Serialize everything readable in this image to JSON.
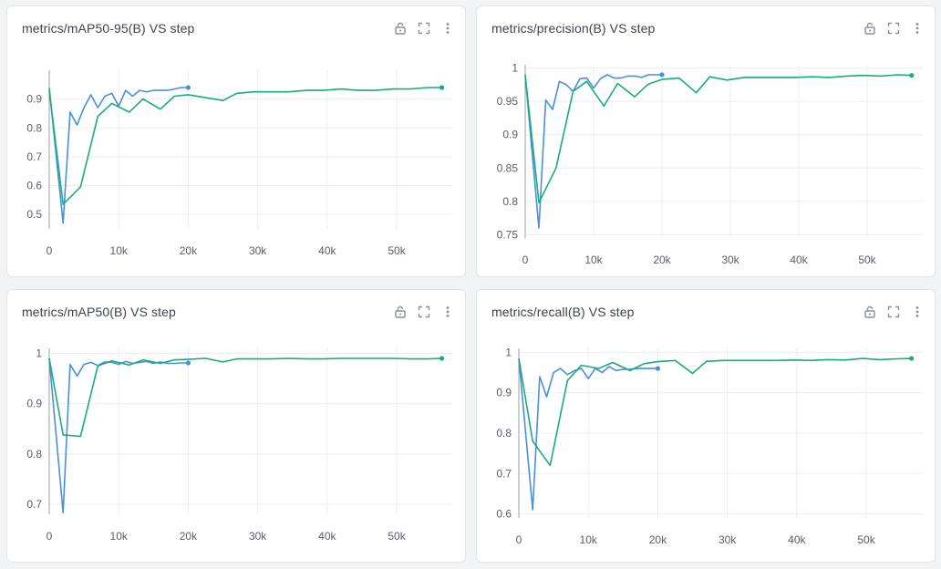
{
  "colors": {
    "series_blue": "#4a90d9",
    "series_green": "#1aac7a",
    "grid": "#eceef1",
    "axis": "#9aa0a8"
  },
  "icons": [
    "lock-open-icon",
    "fullscreen-icon",
    "more-vertical-icon"
  ],
  "panels": [
    {
      "title": "metrics/mAP50-95(B) VS step",
      "chart_data": {
        "type": "line",
        "title": "metrics/mAP50-95(B) VS step",
        "xlabel": "",
        "ylabel": "",
        "xlim": [
          0,
          58000
        ],
        "ylim": [
          0.45,
          1.0
        ],
        "x_ticks": [
          "0",
          "10k",
          "20k",
          "30k",
          "40k",
          "50k"
        ],
        "x_tick_values": [
          0,
          10000,
          20000,
          30000,
          40000,
          50000
        ],
        "y_ticks": [
          "0.5",
          "0.6",
          "0.7",
          "0.8",
          "0.9"
        ],
        "y_tick_values": [
          0.5,
          0.6,
          0.7,
          0.8,
          0.9
        ],
        "grid": true,
        "series": [
          {
            "color": "#4a90d9",
            "x": [
              0,
              2000,
              3000,
              4000,
              5000,
              6000,
              7000,
              8000,
              9000,
              10000,
              11000,
              12000,
              13000,
              14000,
              15000,
              16000,
              17000,
              18000,
              19000,
              20000
            ],
            "y": [
              0.94,
              0.47,
              0.855,
              0.81,
              0.87,
              0.915,
              0.87,
              0.91,
              0.92,
              0.875,
              0.93,
              0.91,
              0.93,
              0.925,
              0.93,
              0.93,
              0.93,
              0.935,
              0.94,
              0.94
            ]
          },
          {
            "color": "#1aac7a",
            "x": [
              0,
              2000,
              4500,
              7000,
              9000,
              11500,
              13500,
              16000,
              18000,
              20000,
              22500,
              25000,
              27000,
              29500,
              32000,
              34500,
              37000,
              39500,
              42000,
              44500,
              47000,
              49500,
              52000,
              54500,
              56500
            ],
            "y": [
              0.93,
              0.535,
              0.595,
              0.84,
              0.885,
              0.855,
              0.9,
              0.865,
              0.91,
              0.915,
              0.905,
              0.895,
              0.92,
              0.925,
              0.925,
              0.925,
              0.93,
              0.93,
              0.935,
              0.93,
              0.93,
              0.935,
              0.935,
              0.94,
              0.94
            ]
          }
        ]
      }
    },
    {
      "title": "metrics/precision(B) VS step",
      "chart_data": {
        "type": "line",
        "title": "metrics/precision(B) VS step",
        "xlabel": "",
        "ylabel": "",
        "xlim": [
          0,
          58000
        ],
        "ylim": [
          0.745,
          1.005
        ],
        "x_ticks": [
          "0",
          "10k",
          "20k",
          "30k",
          "40k",
          "50k"
        ],
        "x_tick_values": [
          0,
          10000,
          20000,
          30000,
          40000,
          50000
        ],
        "y_ticks": [
          "0.75",
          "0.8",
          "0.85",
          "0.9",
          "0.95",
          "1"
        ],
        "y_tick_values": [
          0.75,
          0.8,
          0.85,
          0.9,
          0.95,
          1.0
        ],
        "grid": true,
        "series": [
          {
            "color": "#4a90d9",
            "x": [
              0,
              2000,
              3000,
              4000,
              5000,
              6000,
              7000,
              8000,
              9000,
              10000,
              11000,
              12000,
              13000,
              14000,
              15000,
              16000,
              17000,
              18000,
              19000,
              20000
            ],
            "y": [
              0.99,
              0.76,
              0.952,
              0.938,
              0.98,
              0.975,
              0.965,
              0.984,
              0.985,
              0.97,
              0.984,
              0.99,
              0.985,
              0.985,
              0.988,
              0.988,
              0.986,
              0.99,
              0.99,
              0.99
            ],
            "dot_last": true
          },
          {
            "color": "#1aac7a",
            "x": [
              0,
              2000,
              4500,
              7000,
              9000,
              11500,
              13500,
              16000,
              18000,
              20000,
              22500,
              25000,
              27000,
              29500,
              32000,
              34500,
              37000,
              39500,
              42000,
              44500,
              47000,
              49500,
              52000,
              54500,
              56500
            ],
            "y": [
              0.99,
              0.798,
              0.85,
              0.965,
              0.98,
              0.943,
              0.977,
              0.957,
              0.976,
              0.983,
              0.985,
              0.963,
              0.987,
              0.982,
              0.986,
              0.986,
              0.986,
              0.986,
              0.987,
              0.986,
              0.988,
              0.989,
              0.988,
              0.99,
              0.989
            ]
          }
        ]
      }
    },
    {
      "title": "metrics/mAP50(B) VS step",
      "chart_data": {
        "type": "line",
        "title": "metrics/mAP50(B) VS step",
        "xlabel": "",
        "ylabel": "",
        "xlim": [
          0,
          58000
        ],
        "ylim": [
          0.68,
          1.01
        ],
        "x_ticks": [
          "0",
          "10k",
          "20k",
          "30k",
          "40k",
          "50k"
        ],
        "x_tick_values": [
          0,
          10000,
          20000,
          30000,
          40000,
          50000
        ],
        "y_ticks": [
          "0.7",
          "0.8",
          "0.9",
          "1"
        ],
        "y_tick_values": [
          0.7,
          0.8,
          0.9,
          1.0
        ],
        "grid": true,
        "series": [
          {
            "color": "#4a90d9",
            "x": [
              0,
              2000,
              3000,
              4000,
              5000,
              6000,
              7000,
              8000,
              9000,
              10000,
              11000,
              12000,
              13000,
              14000,
              15000,
              16000,
              17000,
              18000,
              19000,
              20000
            ],
            "y": [
              0.99,
              0.683,
              0.978,
              0.955,
              0.978,
              0.982,
              0.976,
              0.983,
              0.982,
              0.978,
              0.984,
              0.98,
              0.982,
              0.984,
              0.98,
              0.983,
              0.98,
              0.98,
              0.981,
              0.981
            ]
          },
          {
            "color": "#1aac7a",
            "x": [
              0,
              2000,
              4500,
              7000,
              9000,
              11500,
              13500,
              16000,
              18000,
              20000,
              22500,
              25000,
              27000,
              29500,
              32000,
              34500,
              37000,
              39500,
              42000,
              44500,
              47000,
              49500,
              52000,
              54500,
              56500
            ],
            "y": [
              0.99,
              0.838,
              0.835,
              0.975,
              0.985,
              0.977,
              0.987,
              0.98,
              0.987,
              0.988,
              0.99,
              0.983,
              0.989,
              0.989,
              0.989,
              0.99,
              0.989,
              0.989,
              0.99,
              0.99,
              0.99,
              0.99,
              0.989,
              0.989,
              0.99
            ]
          }
        ]
      }
    },
    {
      "title": "metrics/recall(B) VS step",
      "chart_data": {
        "type": "line",
        "title": "metrics/recall(B) VS step",
        "xlabel": "",
        "ylabel": "",
        "xlim": [
          0,
          58000
        ],
        "ylim": [
          0.59,
          1.01
        ],
        "x_ticks": [
          "0",
          "10k",
          "20k",
          "30k",
          "40k",
          "50k"
        ],
        "x_tick_values": [
          0,
          10000,
          20000,
          30000,
          40000,
          50000
        ],
        "y_ticks": [
          "0.6",
          "0.7",
          "0.8",
          "0.9",
          "1"
        ],
        "y_tick_values": [
          0.6,
          0.7,
          0.8,
          0.9,
          1.0
        ],
        "grid": true,
        "series": [
          {
            "color": "#4a90d9",
            "x": [
              0,
              2000,
              3000,
              4000,
              5000,
              6000,
              7000,
              8000,
              9000,
              10000,
              11000,
              12000,
              13000,
              14000,
              15000,
              16000,
              17000,
              18000,
              19000,
              20000
            ],
            "y": [
              0.985,
              0.61,
              0.94,
              0.89,
              0.95,
              0.96,
              0.945,
              0.955,
              0.96,
              0.935,
              0.96,
              0.95,
              0.965,
              0.955,
              0.958,
              0.958,
              0.96,
              0.96,
              0.96,
              0.96
            ]
          },
          {
            "color": "#1aac7a",
            "x": [
              0,
              2000,
              4500,
              7000,
              9000,
              11500,
              13500,
              16000,
              18000,
              20000,
              22500,
              25000,
              27000,
              29500,
              32000,
              34500,
              37000,
              39500,
              42000,
              44500,
              47000,
              49500,
              52000,
              54500,
              56500
            ],
            "y": [
              0.985,
              0.78,
              0.72,
              0.93,
              0.968,
              0.96,
              0.975,
              0.955,
              0.972,
              0.977,
              0.98,
              0.948,
              0.978,
              0.98,
              0.98,
              0.98,
              0.98,
              0.981,
              0.98,
              0.982,
              0.981,
              0.985,
              0.982,
              0.984,
              0.985
            ]
          }
        ]
      }
    }
  ]
}
